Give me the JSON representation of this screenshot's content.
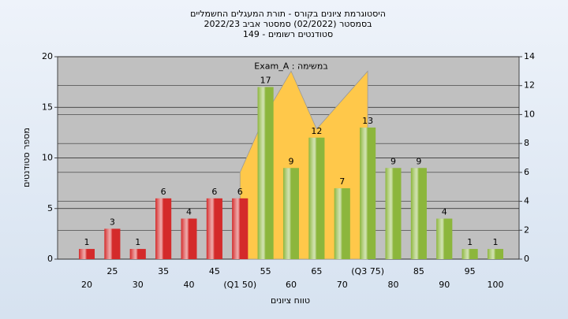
{
  "chart_data": {
    "type": "bar",
    "title": "היסטוגרמת ציונים בקורס - תורת המעגלים החשמליים",
    "subtitle": "בסמסטר  (02/2022)  סמסטר אביב 2022/23",
    "subtitle2": "סטודנטים רשומים - 149",
    "x_label": "טווח ציונים",
    "y_label": "מספר סטודנטים",
    "categories": [
      "20",
      "25",
      "30",
      "35",
      "40",
      "45",
      "(Q1 50)",
      "55",
      "60",
      "65",
      "70",
      "(Q3 75)",
      "80",
      "85",
      "90",
      "95",
      "100"
    ],
    "values": [
      1,
      3,
      1,
      6,
      4,
      6,
      6,
      17,
      9,
      12,
      7,
      13,
      9,
      9,
      4,
      1,
      1
    ],
    "bar_colors": [
      "#d42a2a",
      "#d42a2a",
      "#d42a2a",
      "#d42a2a",
      "#d42a2a",
      "#d42a2a",
      "#d42a2a",
      "#8cb63c",
      "#8cb63c",
      "#8cb63c",
      "#8cb63c",
      "#8cb63c",
      "#8cb63c",
      "#8cb63c",
      "#8cb63c",
      "#8cb63c",
      "#8cb63c"
    ],
    "series": [
      {
        "name": "Exam_A : במשימה",
        "color": "#ffc84a",
        "axis": "y2",
        "values": [
          null,
          null,
          null,
          null,
          null,
          null,
          6,
          10,
          13,
          9,
          11,
          13,
          null,
          null,
          null,
          null,
          null
        ]
      }
    ],
    "ylim": [
      0,
      20
    ],
    "yticks": [
      0,
      5,
      10,
      15,
      20
    ],
    "y2lim": [
      0,
      14
    ],
    "y2ticks": [
      0,
      2,
      4,
      6,
      8,
      10,
      12,
      14
    ],
    "grid": true
  }
}
